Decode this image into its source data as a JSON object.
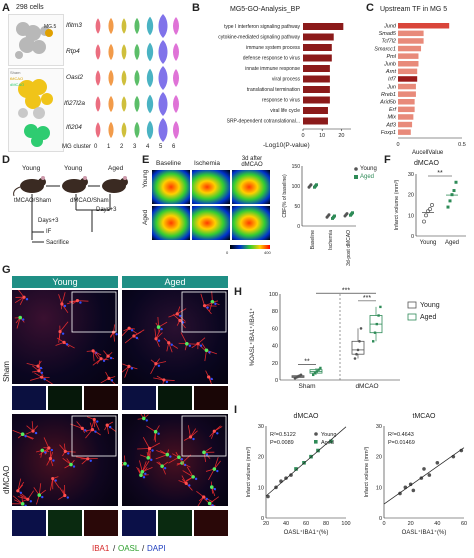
{
  "panels": {
    "A": {
      "letter": "A",
      "cells_label": "298 cells",
      "cluster_label": "MG.5",
      "genes": [
        "Ifitm3",
        "Rtp4",
        "Oasl2",
        "Ifi27l2a",
        "Ifi204"
      ],
      "xlabel": "MG cluster",
      "clusters": [
        "0",
        "1",
        "2",
        "3",
        "4",
        "5",
        "6"
      ],
      "legend_sham": "Sham",
      "legend_tmcao": "tMCAO",
      "legend_dmcao": "dMCAO"
    },
    "B": {
      "letter": "B",
      "title": "MG5-GO-Analysis_BP",
      "xlabel": "-Log10(P-value)",
      "ticks": [
        "0",
        "10",
        "20"
      ]
    },
    "C": {
      "letter": "C",
      "title": "Upstream TF in MG 5",
      "xlabel": "AucellValue",
      "ticks": [
        "0",
        "0.5"
      ]
    },
    "D": {
      "letter": "D",
      "young1": "Young",
      "young2": "Young",
      "aged": "Aged",
      "tmcao": "tMCAO/Sham",
      "dmcao": "dMCAO/Sham",
      "days1": "Days+3",
      "days2": "Days+3",
      "if": "IF",
      "sacrifice": "Sacrifice"
    },
    "E": {
      "letter": "E",
      "col1": "Baseline",
      "col2": "Ischemia",
      "col3": "3d after dMCAO",
      "row1": "Young",
      "row2": "Aged",
      "scale_min": "0",
      "scale_max": "400",
      "ylabel": "CBF(% of baseline)",
      "yticks": [
        "150",
        "100",
        "50",
        "0"
      ],
      "xcats": [
        "Baseline",
        "Ischemia",
        "3d-post dMCAO"
      ],
      "legend_young": "Young",
      "legend_aged": "Aged"
    },
    "F": {
      "letter": "F",
      "title": "dMCAO",
      "ylabel": "Infarct volume (mm³)",
      "yticks": [
        "30",
        "20",
        "10",
        "0"
      ],
      "xcats": [
        "Young",
        "Aged"
      ],
      "sig": "**"
    },
    "G": {
      "letter": "G",
      "col_young": "Young",
      "col_aged": "Aged",
      "row_sham": "Sham",
      "row_dmcao": "dMCAO",
      "stain_iba1": "IBA1",
      "stain_oasl": "OASL",
      "stain_dapi": "DAPI",
      "sep1": "/",
      "sep2": "/"
    },
    "H": {
      "letter": "H",
      "ylabel": "%OASL⁺IBA1⁺/IBA1⁺",
      "yticks": [
        "100",
        "80",
        "60",
        "40",
        "20",
        "0"
      ],
      "xcats": [
        "Sham",
        "dMCAO"
      ],
      "legend_young": "Young",
      "legend_aged": "Aged",
      "sig_sham": "**",
      "sig_top": "***",
      "sig_mid": "***"
    },
    "I": {
      "letter": "I",
      "left_title": "dMCAO",
      "right_title": "tMCAO",
      "left_r2": "R²=0.5122",
      "left_p": "P=0.0089",
      "right_r2": "R²=0.4643",
      "right_p": "P=0.01469",
      "ylabel": "Infarct volume (mm³)",
      "xlabel": "OASL⁺IBA1⁺(%)",
      "legend_young": "Young",
      "legend_aged": "Aged",
      "left_yticks": [
        "30",
        "20",
        "10",
        "0"
      ],
      "left_xticks": [
        "20",
        "40",
        "60",
        "80",
        "100"
      ],
      "right_yticks": [
        "30",
        "20",
        "10",
        "0"
      ],
      "right_xticks": [
        "0",
        "20",
        "40",
        "60"
      ]
    }
  },
  "colors": {
    "bar_dark_red": "#8b1a1a",
    "tf_red": "#d9453a",
    "tf_highlight": "#9b1b1b",
    "young_gray": "#555555",
    "aged_green": "#2e8b57"
  },
  "chart_data": [
    {
      "id": "B",
      "type": "bar",
      "title": "MG5-GO-Analysis_BP",
      "xlabel": "-Log10(P-value)",
      "categories": [
        "type I interferon signaling pathway",
        "cytokine-mediated signaling pathway",
        "immune system process",
        "defense response to virus",
        "innate immune response",
        "viral process",
        "translational termination",
        "response to virus",
        "viral life cycle",
        "SRP-dependent cotranslational..."
      ],
      "values": [
        21,
        16,
        15,
        15,
        14,
        14,
        14,
        14,
        13,
        13
      ],
      "xlim": [
        0,
        25
      ]
    },
    {
      "id": "C",
      "type": "bar",
      "title": "Upstream TF in MG 5",
      "xlabel": "AucellValue",
      "categories": [
        "Jund",
        "Smad5",
        "Tcf7l2",
        "Smarcc1",
        "Pml",
        "Junb",
        "Arnt",
        "Irf7",
        "Jun",
        "Rreb1",
        "Arid5b",
        "Erf",
        "Mlx",
        "Atf3",
        "Foxp1"
      ],
      "values": [
        0.4,
        0.2,
        0.2,
        0.18,
        0.16,
        0.16,
        0.15,
        0.15,
        0.14,
        0.14,
        0.13,
        0.13,
        0.12,
        0.11,
        0.1
      ],
      "xlim": [
        0,
        0.5
      ]
    },
    {
      "id": "E",
      "type": "scatter",
      "ylabel": "CBF(% of baseline)",
      "categories": [
        "Baseline",
        "Ischemia",
        "3d-post dMCAO"
      ],
      "series": [
        {
          "name": "Young",
          "values": [
            100,
            25,
            28
          ]
        },
        {
          "name": "Aged",
          "values": [
            100,
            22,
            30
          ]
        }
      ],
      "ylim": [
        0,
        150
      ]
    },
    {
      "id": "F",
      "type": "scatter",
      "title": "dMCAO",
      "ylabel": "Infarct volume (mm³)",
      "categories": [
        "Young",
        "Aged"
      ],
      "series": [
        {
          "name": "Young",
          "values": [
            7,
            10,
            12,
            13,
            15
          ]
        },
        {
          "name": "Aged",
          "values": [
            14,
            17,
            20,
            22,
            26
          ]
        }
      ],
      "ylim": [
        0,
        30
      ]
    },
    {
      "id": "H",
      "type": "bar",
      "ylabel": "%OASL⁺IBA1⁺/IBA1⁺",
      "categories": [
        "Sham",
        "dMCAO"
      ],
      "series": [
        {
          "name": "Young",
          "values": [
            [
              2,
              3,
              4,
              5,
              6
            ],
            [
              25,
              30,
              35,
              45,
              60
            ]
          ]
        },
        {
          "name": "Aged",
          "values": [
            [
              6,
              8,
              10,
              12,
              14
            ],
            [
              45,
              55,
              65,
              75,
              85
            ]
          ]
        }
      ],
      "ylim": [
        0,
        100
      ]
    },
    {
      "id": "I-left",
      "type": "scatter",
      "title": "dMCAO",
      "xlabel": "OASL⁺IBA1⁺(%)",
      "ylabel": "Infarct volume (mm³)",
      "series": [
        {
          "name": "Young",
          "points": [
            [
              22,
              7
            ],
            [
              30,
              10
            ],
            [
              35,
              12
            ],
            [
              40,
              13
            ],
            [
              45,
              14
            ]
          ]
        },
        {
          "name": "Aged",
          "points": [
            [
              50,
              16
            ],
            [
              58,
              18
            ],
            [
              65,
              20
            ],
            [
              72,
              22
            ],
            [
              85,
              25
            ]
          ]
        }
      ],
      "xlim": [
        20,
        100
      ],
      "ylim": [
        0,
        30
      ]
    },
    {
      "id": "I-right",
      "type": "scatter",
      "title": "tMCAO",
      "xlabel": "OASL⁺IBA1⁺(%)",
      "ylabel": "Infarct volume (mm³)",
      "series": [
        {
          "name": "",
          "points": [
            [
              12,
              8
            ],
            [
              16,
              10
            ],
            [
              20,
              11
            ],
            [
              22,
              9
            ],
            [
              28,
              13
            ],
            [
              30,
              16
            ],
            [
              34,
              14
            ],
            [
              40,
              18
            ],
            [
              52,
              20
            ],
            [
              58,
              22
            ]
          ]
        }
      ],
      "xlim": [
        0,
        60
      ],
      "ylim": [
        0,
        30
      ]
    }
  ]
}
